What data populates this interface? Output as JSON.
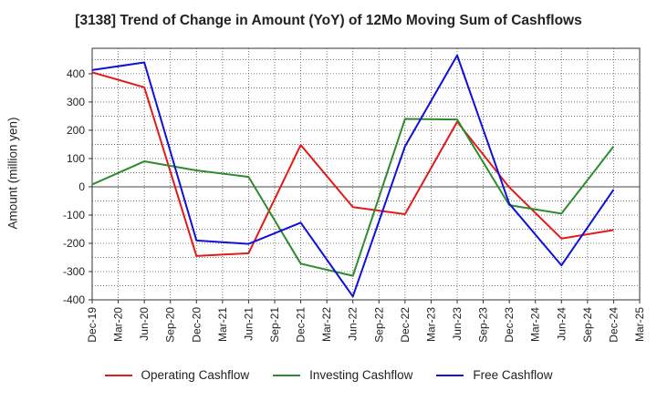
{
  "chart_data": {
    "type": "line",
    "title": "[3138]  Trend of Change in Amount (YoY) of 12Mo Moving Sum of Cashflows",
    "ylabel": "Amount (million yen)",
    "xlabel": "",
    "ylim": [
      -400,
      490
    ],
    "yticks": [
      400,
      300,
      200,
      100,
      0,
      -100,
      -200,
      -300,
      -400
    ],
    "categories": [
      "Dec-19",
      "Mar-20",
      "Jun-20",
      "Sep-20",
      "Dec-20",
      "Mar-21",
      "Jun-21",
      "Sep-21",
      "Dec-21",
      "Mar-22",
      "Jun-22",
      "Sep-22",
      "Dec-22",
      "Mar-23",
      "Jun-23",
      "Sep-23",
      "Dec-23",
      "Mar-24",
      "Jun-24",
      "Sep-24",
      "Dec-24",
      "Mar-25"
    ],
    "grid": true,
    "legend_position": "bottom",
    "series": [
      {
        "name": "Operating Cashflow",
        "color": "#e41a1a",
        "points": [
          [
            0,
            405
          ],
          [
            2,
            352
          ],
          [
            4,
            -245
          ],
          [
            6,
            -235
          ],
          [
            8,
            148
          ],
          [
            10,
            -72
          ],
          [
            12,
            -97
          ],
          [
            14,
            230
          ],
          [
            16,
            -2
          ],
          [
            18,
            -183
          ],
          [
            20,
            -153
          ]
        ]
      },
      {
        "name": "Investing Cashflow",
        "color": "#2e8b2e",
        "points": [
          [
            0,
            8
          ],
          [
            2,
            90
          ],
          [
            4,
            58
          ],
          [
            6,
            35
          ],
          [
            8,
            -272
          ],
          [
            10,
            -315
          ],
          [
            12,
            240
          ],
          [
            14,
            238
          ],
          [
            16,
            -65
          ],
          [
            18,
            -95
          ],
          [
            20,
            143
          ]
        ]
      },
      {
        "name": "Free Cashflow",
        "color": "#1010dd",
        "points": [
          [
            0,
            413
          ],
          [
            2,
            440
          ],
          [
            4,
            -190
          ],
          [
            6,
            -202
          ],
          [
            8,
            -127
          ],
          [
            10,
            -388
          ],
          [
            12,
            143
          ],
          [
            14,
            465
          ],
          [
            16,
            -60
          ],
          [
            18,
            -278
          ],
          [
            20,
            -10
          ]
        ]
      }
    ]
  }
}
